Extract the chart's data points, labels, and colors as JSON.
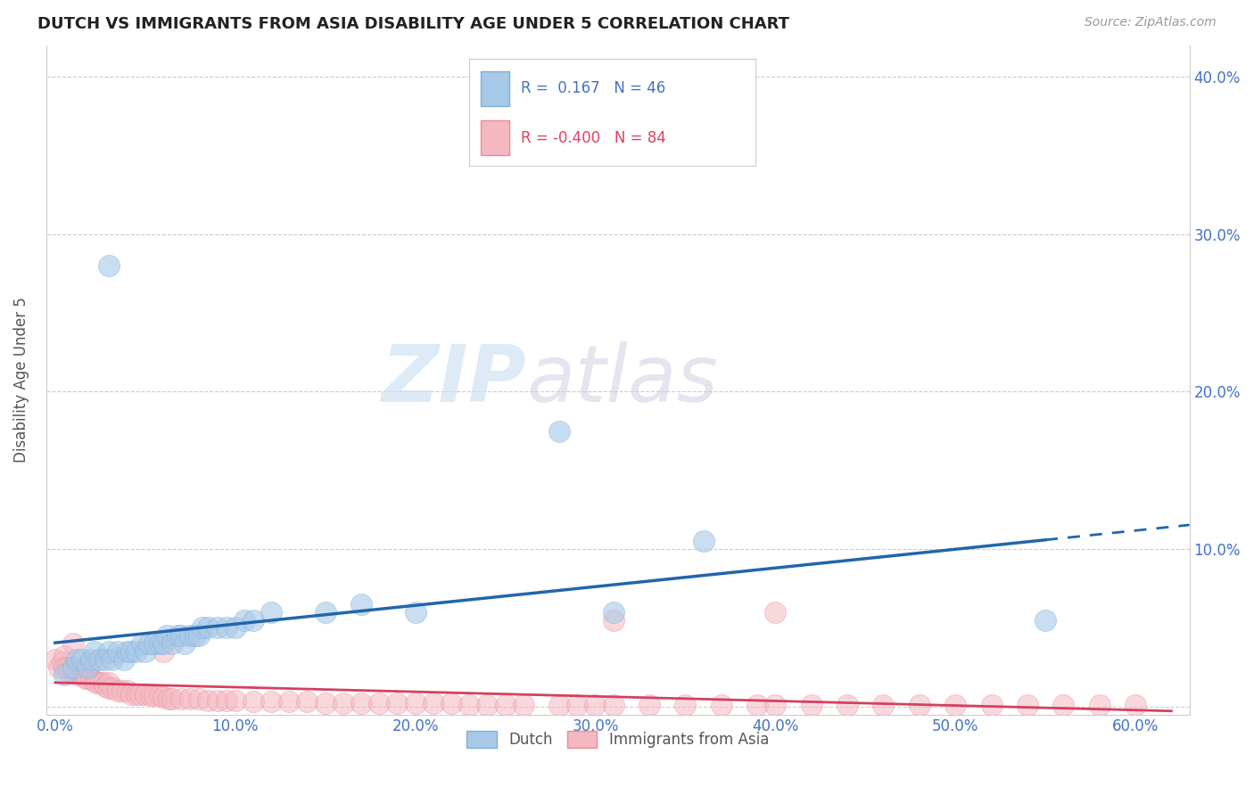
{
  "title": "DUTCH VS IMMIGRANTS FROM ASIA DISABILITY AGE UNDER 5 CORRELATION CHART",
  "source": "Source: ZipAtlas.com",
  "ylabel": "Disability Age Under 5",
  "right_ytick_vals": [
    0.0,
    0.1,
    0.2,
    0.3,
    0.4
  ],
  "right_ytick_labels": [
    "",
    "10.0%",
    "20.0%",
    "30.0%",
    "40.0%"
  ],
  "bottom_xtick_vals": [
    0.0,
    0.1,
    0.2,
    0.3,
    0.4,
    0.5,
    0.6
  ],
  "bottom_xtick_labels": [
    "0.0%",
    "10.0%",
    "20.0%",
    "30.0%",
    "40.0%",
    "50.0%",
    "60.0%"
  ],
  "xlim": [
    -0.005,
    0.63
  ],
  "ylim": [
    -0.005,
    0.42
  ],
  "dutch_color": "#a8c8e8",
  "dutch_edge_color": "#7bafd4",
  "asia_color": "#f4b8c1",
  "asia_edge_color": "#e88a99",
  "dutch_line_color": "#2166ac",
  "asia_line_color": "#d44060",
  "dutch_R": 0.167,
  "dutch_N": 46,
  "asia_R": -0.4,
  "asia_N": 84,
  "watermark_zip": "ZIP",
  "watermark_atlas": "atlas",
  "background_color": "#ffffff",
  "grid_color": "#cccccc",
  "tick_color": "#4472c4",
  "legend_label_dutch": "Dutch",
  "legend_label_asia": "Immigrants from Asia",
  "dutch_x": [
    0.005,
    0.01,
    0.012,
    0.015,
    0.018,
    0.02,
    0.022,
    0.025,
    0.028,
    0.03,
    0.032,
    0.035,
    0.038,
    0.04,
    0.042,
    0.045,
    0.048,
    0.05,
    0.052,
    0.055,
    0.058,
    0.06,
    0.062,
    0.065,
    0.068,
    0.07,
    0.072,
    0.075,
    0.078,
    0.08,
    0.082,
    0.085,
    0.09,
    0.095,
    0.1,
    0.105,
    0.11,
    0.12,
    0.15,
    0.17,
    0.2,
    0.28,
    0.31,
    0.36,
    0.55,
    0.03
  ],
  "dutch_y": [
    0.02,
    0.025,
    0.03,
    0.03,
    0.025,
    0.03,
    0.035,
    0.03,
    0.03,
    0.035,
    0.03,
    0.035,
    0.03,
    0.035,
    0.035,
    0.035,
    0.04,
    0.035,
    0.04,
    0.04,
    0.04,
    0.04,
    0.045,
    0.04,
    0.045,
    0.045,
    0.04,
    0.045,
    0.045,
    0.045,
    0.05,
    0.05,
    0.05,
    0.05,
    0.05,
    0.055,
    0.055,
    0.06,
    0.06,
    0.065,
    0.06,
    0.175,
    0.06,
    0.105,
    0.055,
    0.28
  ],
  "asia_x": [
    0.0,
    0.002,
    0.004,
    0.005,
    0.005,
    0.007,
    0.008,
    0.01,
    0.01,
    0.012,
    0.013,
    0.015,
    0.015,
    0.017,
    0.018,
    0.02,
    0.022,
    0.023,
    0.025,
    0.027,
    0.028,
    0.03,
    0.03,
    0.032,
    0.035,
    0.037,
    0.04,
    0.042,
    0.045,
    0.047,
    0.05,
    0.053,
    0.055,
    0.058,
    0.06,
    0.063,
    0.065,
    0.07,
    0.075,
    0.08,
    0.085,
    0.09,
    0.095,
    0.1,
    0.11,
    0.12,
    0.13,
    0.14,
    0.15,
    0.16,
    0.17,
    0.18,
    0.19,
    0.2,
    0.21,
    0.22,
    0.23,
    0.24,
    0.25,
    0.26,
    0.28,
    0.29,
    0.3,
    0.31,
    0.33,
    0.35,
    0.37,
    0.39,
    0.4,
    0.42,
    0.44,
    0.46,
    0.48,
    0.5,
    0.52,
    0.54,
    0.56,
    0.58,
    0.6,
    0.31,
    0.4,
    0.06,
    0.01,
    0.02
  ],
  "asia_y": [
    0.03,
    0.025,
    0.028,
    0.032,
    0.025,
    0.025,
    0.022,
    0.022,
    0.025,
    0.02,
    0.022,
    0.02,
    0.022,
    0.018,
    0.018,
    0.018,
    0.016,
    0.015,
    0.015,
    0.015,
    0.013,
    0.012,
    0.015,
    0.012,
    0.01,
    0.01,
    0.01,
    0.008,
    0.008,
    0.008,
    0.008,
    0.007,
    0.007,
    0.007,
    0.006,
    0.005,
    0.005,
    0.005,
    0.005,
    0.005,
    0.004,
    0.004,
    0.004,
    0.004,
    0.003,
    0.003,
    0.003,
    0.003,
    0.002,
    0.002,
    0.002,
    0.002,
    0.002,
    0.002,
    0.002,
    0.002,
    0.001,
    0.001,
    0.001,
    0.001,
    0.001,
    0.001,
    0.001,
    0.001,
    0.001,
    0.001,
    0.001,
    0.001,
    0.001,
    0.001,
    0.001,
    0.001,
    0.001,
    0.001,
    0.001,
    0.001,
    0.001,
    0.001,
    0.001,
    0.055,
    0.06,
    0.035,
    0.04,
    0.028
  ]
}
